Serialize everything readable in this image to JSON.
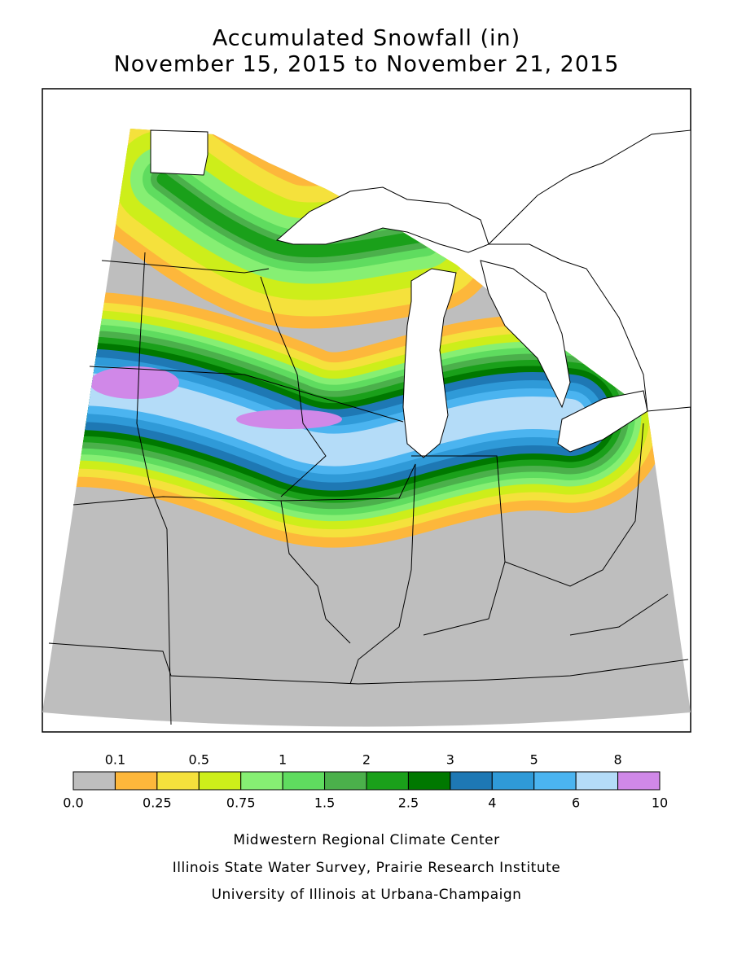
{
  "header": {
    "title": "Accumulated Snowfall (in)",
    "subtitle": "November 15, 2015 to November 21, 2015"
  },
  "legend": {
    "colors": [
      "#bebebe",
      "#fdb73b",
      "#f5e13c",
      "#cdee1a",
      "#86ef73",
      "#5fdc5f",
      "#4bb04b",
      "#1aa01a",
      "#007800",
      "#1e78b4",
      "#2f9ad8",
      "#4bb4f0",
      "#b4dcf8",
      "#d088e8"
    ],
    "boundaries": [
      "0.0",
      "0.1",
      "0.25",
      "0.5",
      "0.75",
      "1",
      "1.5",
      "2",
      "2.5",
      "3",
      "4",
      "5",
      "6",
      "8",
      "10"
    ]
  },
  "footer": {
    "lines": [
      "Midwestern Regional Climate Center",
      "Illinois State Water Survey, Prairie Research Institute",
      "University of Illinois at Urbana-Champaign"
    ]
  }
}
